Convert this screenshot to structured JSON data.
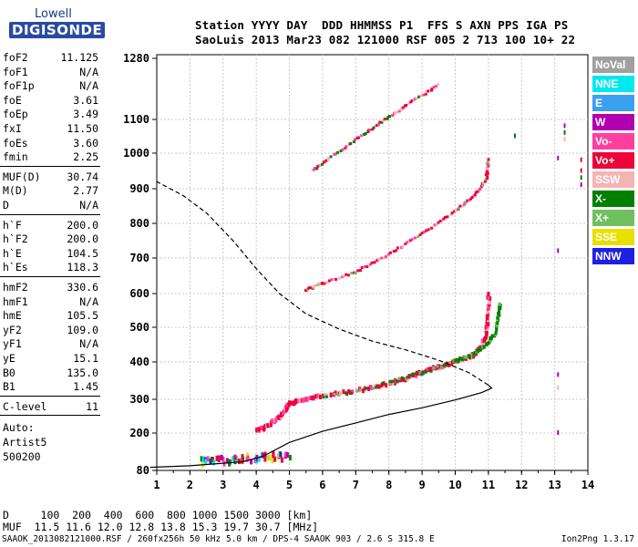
{
  "logo": {
    "top": "Lowell",
    "bottom": "DIGISONDE"
  },
  "header": {
    "line1": "Station YYYY DAY  DDD HHMMSS P1  FFS S AXN PPS IGA PS",
    "line2": "SaoLuis 2013 Mar23 082 121000 RSF 005 2 713 100 10+ 22"
  },
  "params": {
    "group1": [
      {
        "name": "foF2",
        "value": "11.125"
      },
      {
        "name": "foF1",
        "value": "N/A"
      },
      {
        "name": "foF1p",
        "value": "N/A"
      },
      {
        "name": "foE",
        "value": "3.61"
      },
      {
        "name": "foEp",
        "value": "3.49"
      },
      {
        "name": "fxI",
        "value": "11.50"
      },
      {
        "name": "foEs",
        "value": "3.60"
      },
      {
        "name": "fmin",
        "value": "2.25"
      }
    ],
    "group2": [
      {
        "name": "MUF(D)",
        "value": "30.74"
      },
      {
        "name": "M(D)",
        "value": "2.77"
      },
      {
        "name": "D",
        "value": "N/A"
      }
    ],
    "group3": [
      {
        "name": "h`F",
        "value": "200.0"
      },
      {
        "name": "h`F2",
        "value": "200.0"
      },
      {
        "name": "h`E",
        "value": "104.5"
      },
      {
        "name": "h`Es",
        "value": "118.3"
      }
    ],
    "group4": [
      {
        "name": "hmF2",
        "value": "330.6"
      },
      {
        "name": "hmF1",
        "value": "N/A"
      },
      {
        "name": "hmE",
        "value": "105.5"
      },
      {
        "name": "yF2",
        "value": "109.0"
      },
      {
        "name": "yF1",
        "value": "N/A"
      },
      {
        "name": "yE",
        "value": "15.1"
      },
      {
        "name": "B0",
        "value": "135.0"
      },
      {
        "name": "B1",
        "value": "1.45"
      }
    ],
    "group5": [
      {
        "name": "C-level",
        "value": "11"
      }
    ],
    "notes": [
      "Auto:",
      "Artist5",
      "500200"
    ]
  },
  "legend": [
    {
      "label": "NoVal",
      "color": "#a0a0a0"
    },
    {
      "label": "NNE",
      "color": "#00e8f0"
    },
    {
      "label": "E",
      "color": "#3aa0f0"
    },
    {
      "label": "W",
      "color": "#b000b0"
    },
    {
      "label": "Vo-",
      "color": "#ff3fa0"
    },
    {
      "label": "Vo+",
      "color": "#ee0038"
    },
    {
      "label": "SSW",
      "color": "#f4b4b4"
    },
    {
      "label": "X-",
      "color": "#008000"
    },
    {
      "label": "X+",
      "color": "#70c060"
    },
    {
      "label": "SSE",
      "color": "#e8e000"
    },
    {
      "label": "NNW",
      "color": "#2020e0"
    }
  ],
  "bottom": {
    "d_line": "D     100  200  400  600  800 1000 1500 3000 [km]",
    "muf_line": "MUF  11.5 11.6 12.0 12.8 13.8 15.3 19.7 30.7 [MHz]"
  },
  "footer": {
    "left": "SAAOK_2013082121000.RSF / 260fx256h 50 kHz 5.0 km / DPS-4 SAAOK 903 / 2.6 S 315.8 E",
    "right": "Ion2Png 1.3.17"
  },
  "chart_data": {
    "type": "scatter",
    "xlim": [
      1,
      14
    ],
    "ylim": [
      80,
      1280
    ],
    "x_ticks": [
      1,
      2,
      3,
      4,
      5,
      6,
      7,
      8,
      9,
      10,
      11,
      12,
      13,
      14
    ],
    "y_ticks": [
      80,
      200,
      300,
      400,
      500,
      600,
      700,
      800,
      900,
      1000,
      1100,
      1280
    ],
    "grid": true,
    "ordinary_trace_Fregion": [
      [
        4.0,
        207
      ],
      [
        4.4,
        222
      ],
      [
        4.8,
        258
      ],
      [
        5.0,
        285
      ],
      [
        5.4,
        300
      ],
      [
        6.0,
        308
      ],
      [
        7.0,
        322
      ],
      [
        8.0,
        342
      ],
      [
        8.5,
        355
      ],
      [
        9.0,
        372
      ],
      [
        9.5,
        386
      ],
      [
        10.0,
        400
      ],
      [
        10.5,
        418
      ],
      [
        10.8,
        440
      ],
      [
        10.95,
        490
      ],
      [
        11.0,
        540
      ],
      [
        11.02,
        600
      ]
    ],
    "extraordinary_trace_Fregion": [
      [
        10.0,
        402
      ],
      [
        10.5,
        420
      ],
      [
        10.9,
        445
      ],
      [
        11.2,
        480
      ],
      [
        11.3,
        530
      ],
      [
        11.35,
        570
      ]
    ],
    "Es_trace": [
      [
        2.3,
        108
      ],
      [
        2.8,
        110
      ],
      [
        3.3,
        113
      ],
      [
        3.8,
        118
      ],
      [
        4.2,
        122
      ],
      [
        4.6,
        124
      ],
      [
        5.0,
        125
      ]
    ],
    "second_hop_trace": [
      [
        5.5,
        610
      ],
      [
        6.0,
        628
      ],
      [
        7.0,
        660
      ],
      [
        8.0,
        710
      ],
      [
        9.0,
        770
      ],
      [
        10.0,
        835
      ],
      [
        10.6,
        880
      ],
      [
        10.95,
        930
      ],
      [
        11.0,
        980
      ]
    ],
    "third_hop_trace": [
      [
        5.7,
        950
      ],
      [
        6.2,
        985
      ],
      [
        7.0,
        1040
      ],
      [
        7.6,
        1080
      ],
      [
        8.2,
        1120
      ],
      [
        8.8,
        1160
      ],
      [
        9.5,
        1200
      ]
    ],
    "electron_density_profile_solid": [
      [
        0.8,
        90
      ],
      [
        2.0,
        95
      ],
      [
        3.0,
        103
      ],
      [
        3.6,
        108
      ],
      [
        4.2,
        125
      ],
      [
        5.0,
        170
      ],
      [
        6.0,
        205
      ],
      [
        7.0,
        230
      ],
      [
        8.0,
        255
      ],
      [
        9.0,
        275
      ],
      [
        10.0,
        298
      ],
      [
        10.8,
        318
      ],
      [
        11.1,
        330
      ],
      [
        11.0,
        338
      ]
    ],
    "electron_density_profile_dashed": [
      [
        11.0,
        338
      ],
      [
        10.4,
        372
      ],
      [
        9.5,
        405
      ],
      [
        8.5,
        435
      ],
      [
        7.5,
        460
      ],
      [
        6.5,
        495
      ],
      [
        5.5,
        540
      ],
      [
        4.7,
        600
      ],
      [
        4.0,
        670
      ],
      [
        3.3,
        750
      ],
      [
        2.5,
        830
      ],
      [
        1.8,
        880
      ],
      [
        1.0,
        920
      ]
    ]
  }
}
